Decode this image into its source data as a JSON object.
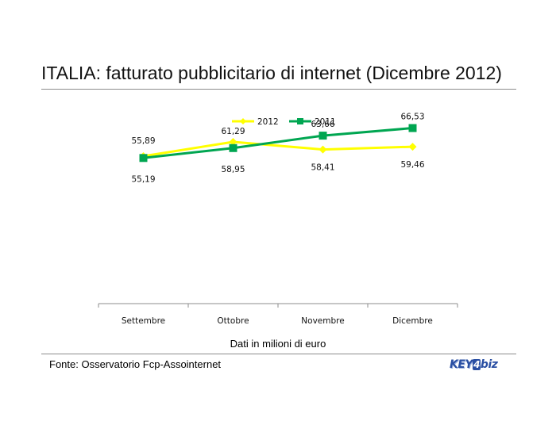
{
  "title": "ITALIA: fatturato pubblicitario di internet (Dicembre 2012)",
  "source": "Fonte: Osservatorio Fcp-Assointernet",
  "logo": {
    "text_key": "KEY",
    "text_four": "4",
    "text_biz": "biz"
  },
  "chart_data": {
    "type": "line",
    "title": "ITALIA: fatturato pubblicitario di internet (Dicembre 2012)",
    "xlabel": "Dati in milioni di euro",
    "ylabel": "",
    "categories": [
      "Settembre",
      "Ottobre",
      "Novembre",
      "Dicembre"
    ],
    "ylim": [
      0,
      70
    ],
    "grid": false,
    "legend": "top-center",
    "series": [
      {
        "name": "2012",
        "values": [
          55.89,
          61.29,
          58.41,
          59.46
        ],
        "labels": [
          "55,89",
          "61,29",
          "58,41",
          "59,46"
        ],
        "color": "#ffff00",
        "marker": "diamond"
      },
      {
        "name": "2011",
        "values": [
          55.19,
          58.95,
          63.66,
          66.53
        ],
        "labels": [
          "55,19",
          "58,95",
          "63,66",
          "66,53"
        ],
        "color": "#00a651",
        "marker": "square"
      }
    ]
  }
}
